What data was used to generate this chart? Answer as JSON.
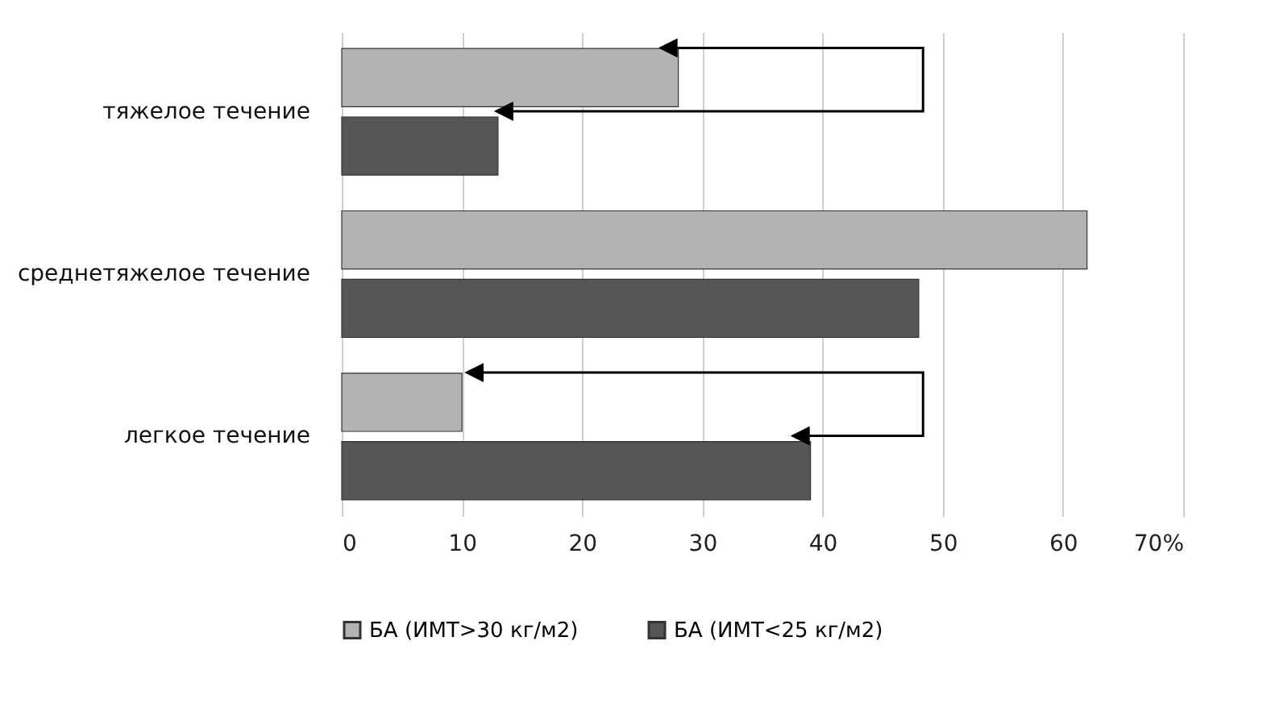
{
  "chart_data": {
    "type": "bar",
    "orientation": "horizontal",
    "categories": [
      "тяжелое течение",
      "среднетяжелое течение",
      "легкое течение"
    ],
    "series": [
      {
        "name": "БА (ИМТ>30 кг/м2)",
        "color": "#b3b3b3",
        "values": [
          28,
          62,
          10
        ]
      },
      {
        "name": "БА (ИМТ<25 кг/м2)",
        "color": "#555555",
        "values": [
          13,
          48,
          39
        ]
      }
    ],
    "xlim": [
      0,
      70
    ],
    "xticks": [
      0,
      10,
      20,
      30,
      40,
      50,
      60,
      {
        "value": 70,
        "label": "70%"
      }
    ],
    "grid": "x",
    "legend": "bottom"
  }
}
